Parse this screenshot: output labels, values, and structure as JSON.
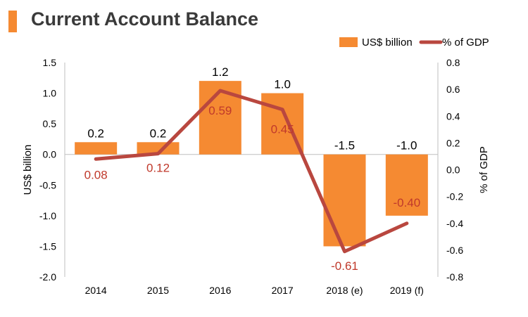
{
  "colors": {
    "accent": "#f58a32",
    "bar": "#f58a32",
    "line": "#b9473f",
    "line_label": "#c0392b",
    "text": "#000000",
    "axis": "#bfbfbf"
  },
  "chart_data": {
    "type": "bar",
    "title": "Current Account Balance",
    "categories": [
      "2014",
      "2015",
      "2016",
      "2017",
      "2018 (e)",
      "2019 (f)"
    ],
    "series": [
      {
        "name": "US$ billion",
        "type": "bar",
        "axis": "left",
        "values": [
          0.2,
          0.2,
          1.2,
          1.0,
          -1.5,
          -1.0
        ],
        "labels": [
          "0.2",
          "0.2",
          "1.2",
          "1.0",
          "-1.5",
          "-1.0"
        ]
      },
      {
        "name": "% of GDP",
        "type": "line",
        "axis": "right",
        "values": [
          0.08,
          0.12,
          0.59,
          0.45,
          -0.61,
          -0.4
        ],
        "labels": [
          "0.08",
          "0.12",
          "0.59",
          "0.45",
          "-0.61",
          "-0.40"
        ]
      }
    ],
    "ylabel": "US$ billion",
    "y2label": "% of GDP",
    "ylim": [
      -2.0,
      1.5
    ],
    "y2lim": [
      -0.8,
      0.8
    ],
    "yticks": [
      "1.5",
      "1.0",
      "0.5",
      "0.0",
      "-0.5",
      "-1.0",
      "-1.5",
      "-2.0"
    ],
    "y2ticks": [
      "0.8",
      "0.6",
      "0.4",
      "0.2",
      "0.0",
      "-0.2",
      "-0.4",
      "-0.6",
      "-0.8"
    ],
    "legend_position": "top-right"
  }
}
